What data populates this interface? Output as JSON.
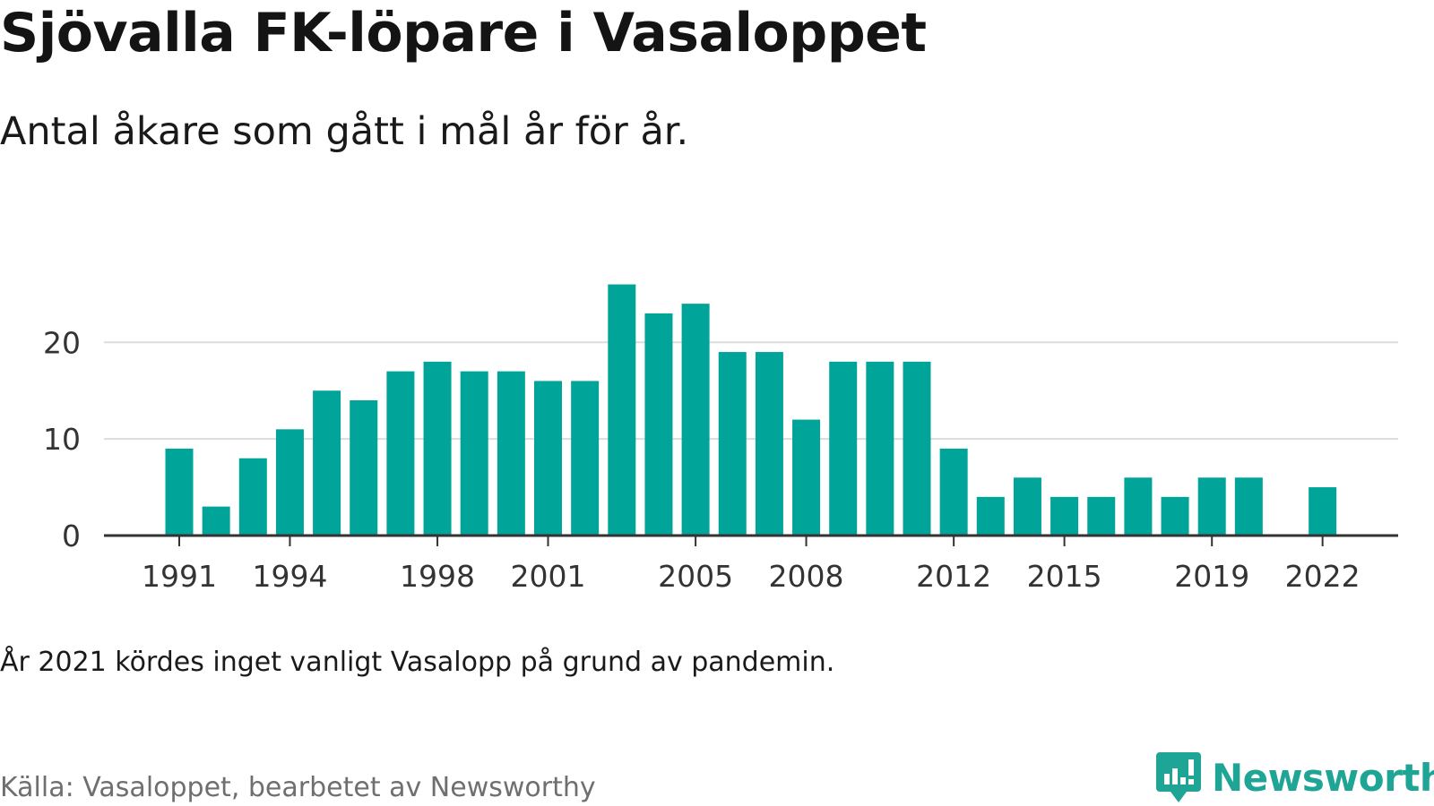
{
  "title": "Sjövalla FK-löpare i Vasaloppet",
  "subtitle": "Antal åkare som gått i mål år för år.",
  "note": "År 2021 kördes inget vanligt Vasalopp på grund av pandemin.",
  "source": "Källa: Vasaloppet, bearbetet av Newsworthy",
  "logo": {
    "text": "Newsworthy",
    "icon": "newsworthy-logo-icon"
  },
  "colors": {
    "bar": "#00a499",
    "grid": "#dcdcdc",
    "axis": "#333333",
    "logo": "#1ea596"
  },
  "chart_data": {
    "type": "bar",
    "title": "Sjövalla FK-löpare i Vasaloppet",
    "subtitle": "Antal åkare som gått i mål år för år.",
    "xlabel": "",
    "ylabel": "",
    "ylim": [
      0,
      28
    ],
    "yticks": [
      0,
      10,
      20
    ],
    "xticks": [
      "1991",
      "1994",
      "1998",
      "2001",
      "2005",
      "2008",
      "2012",
      "2015",
      "2019",
      "2022"
    ],
    "grid": true,
    "legend": "none",
    "categories": [
      "1991",
      "1992",
      "1993",
      "1994",
      "1995",
      "1996",
      "1997",
      "1998",
      "1999",
      "2000",
      "2001",
      "2002",
      "2003",
      "2004",
      "2005",
      "2006",
      "2007",
      "2008",
      "2009",
      "2010",
      "2011",
      "2012",
      "2013",
      "2014",
      "2015",
      "2016",
      "2017",
      "2018",
      "2019",
      "2020",
      "2021",
      "2022"
    ],
    "values": [
      9,
      3,
      8,
      11,
      15,
      14,
      17,
      18,
      17,
      17,
      16,
      16,
      26,
      23,
      24,
      19,
      19,
      12,
      18,
      18,
      18,
      9,
      4,
      6,
      4,
      4,
      6,
      4,
      6,
      6,
      null,
      5
    ]
  }
}
